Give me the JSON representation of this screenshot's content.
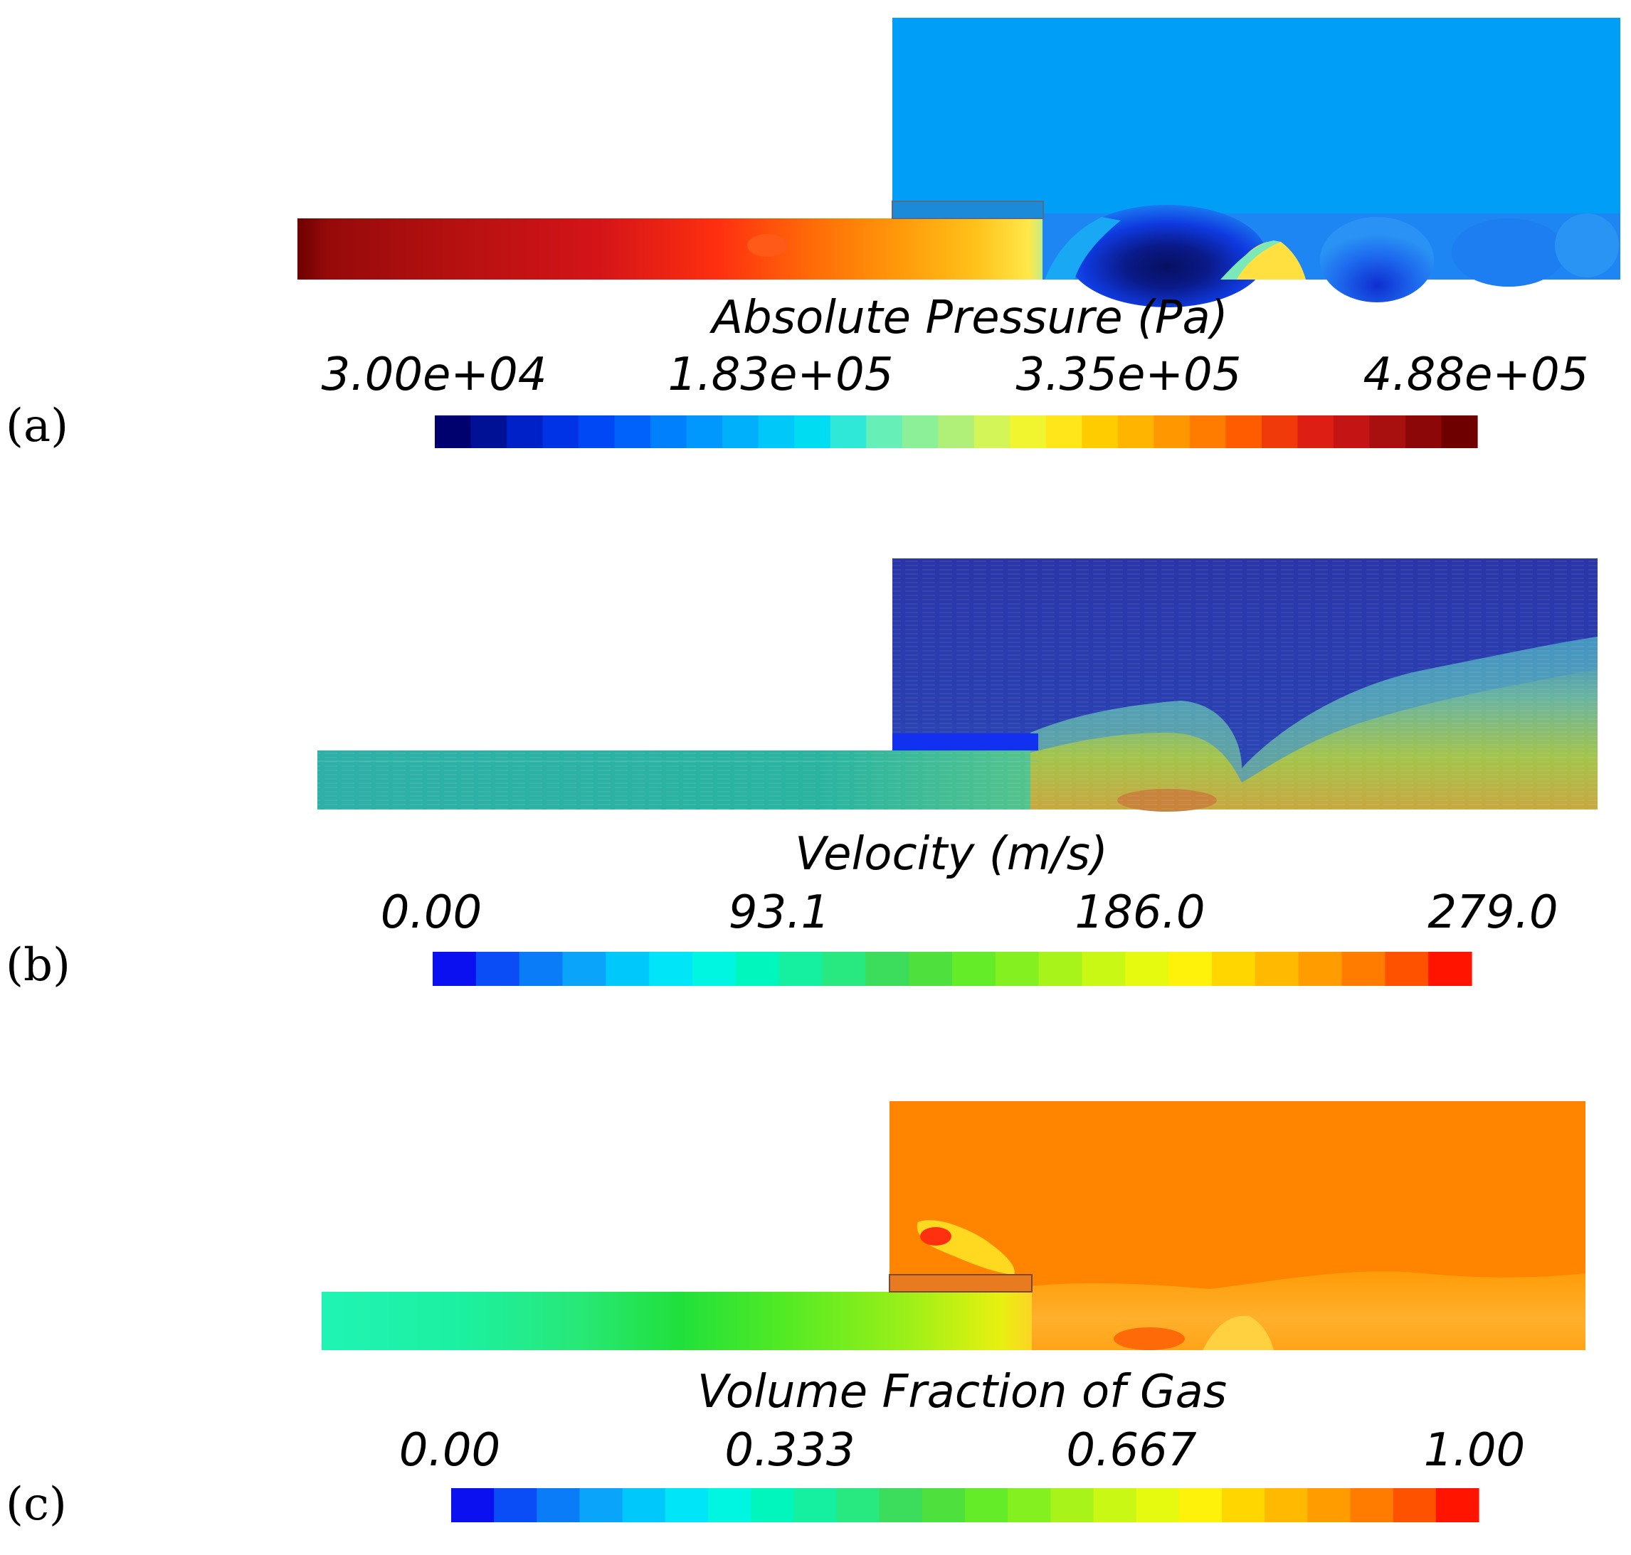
{
  "panels": [
    {
      "label": "(a)",
      "title": "Absolute Pressure (Pa)",
      "ticks": [
        "3.00e+04",
        "1.83e+05",
        "3.35e+05",
        "4.88e+05"
      ],
      "colormap": [
        "#00006e",
        "#001196",
        "#0020c8",
        "#0032e6",
        "#0048f5",
        "#0062fa",
        "#0080fc",
        "#0098fc",
        "#00b0fb",
        "#00c8f8",
        "#00dcf2",
        "#30e8d8",
        "#66f0b8",
        "#8cf098",
        "#b0f078",
        "#d4f558",
        "#f0f530",
        "#ffe61a",
        "#ffcc00",
        "#ffb400",
        "#ff9800",
        "#ff7c00",
        "#ff5c00",
        "#f03a0a",
        "#dc1e14",
        "#c41414",
        "#a81010",
        "#8c0808",
        "#6e0000"
      ],
      "field_colors": {
        "upper": "#009ef7",
        "pipe_left": "#8c0c0c",
        "pipe_mid": "#d41418",
        "pipe_hot": "#ff3010",
        "pipe_orange": "#ff8a0a",
        "pipe_yellow": "#ffe23a",
        "low_core": "#0a1a8a",
        "low": "#0f3ae0",
        "mid_low": "#2a86f2"
      }
    },
    {
      "label": "(b)",
      "title": "Velocity (m/s)",
      "ticks": [
        "0.00",
        "93.1",
        "186.0",
        "279.0"
      ],
      "colormap": [
        "#0a10f0",
        "#0a4cf5",
        "#0a7cf8",
        "#0aa4fa",
        "#00c8fa",
        "#00e6f8",
        "#00f6e0",
        "#00f6bc",
        "#14f0a0",
        "#28e880",
        "#3cdc5c",
        "#4ee03c",
        "#64ec28",
        "#84f020",
        "#a8f41a",
        "#c8f814",
        "#e6fa10",
        "#fff20a",
        "#ffd600",
        "#ffba00",
        "#ff9c00",
        "#ff7c00",
        "#ff5200",
        "#ff1400"
      ],
      "field_colors": {
        "upper": "#2a3eb0",
        "pipe": "#2ab4a4",
        "jet": "#9cc850",
        "jet_core": "#c89040",
        "plate": "#1230f0"
      }
    },
    {
      "label": "(c)",
      "title": "Volume Fraction of Gas",
      "ticks": [
        "0.00",
        "0.333",
        "0.667",
        "1.00"
      ],
      "colormap": [
        "#0a10f0",
        "#0a4cf5",
        "#0a7cf8",
        "#0aa4fa",
        "#00c8fa",
        "#00e6f8",
        "#00f6e0",
        "#00f6bc",
        "#14f0a0",
        "#28e880",
        "#3cdc5c",
        "#4ee03c",
        "#64ec28",
        "#84f020",
        "#a8f41a",
        "#c8f814",
        "#e6fa10",
        "#fff20a",
        "#ffd600",
        "#ffba00",
        "#ff9c00",
        "#ff7c00",
        "#ff5200",
        "#ff1400"
      ],
      "field_colors": {
        "upper": "#ff8400",
        "pipe_left": "#20f4b0",
        "pipe_mid": "#38e850",
        "pipe_green": "#20e03c",
        "pipe_yellow": "#c4f018",
        "mix": "#ffb428",
        "bubble": "#ff3010"
      }
    }
  ]
}
